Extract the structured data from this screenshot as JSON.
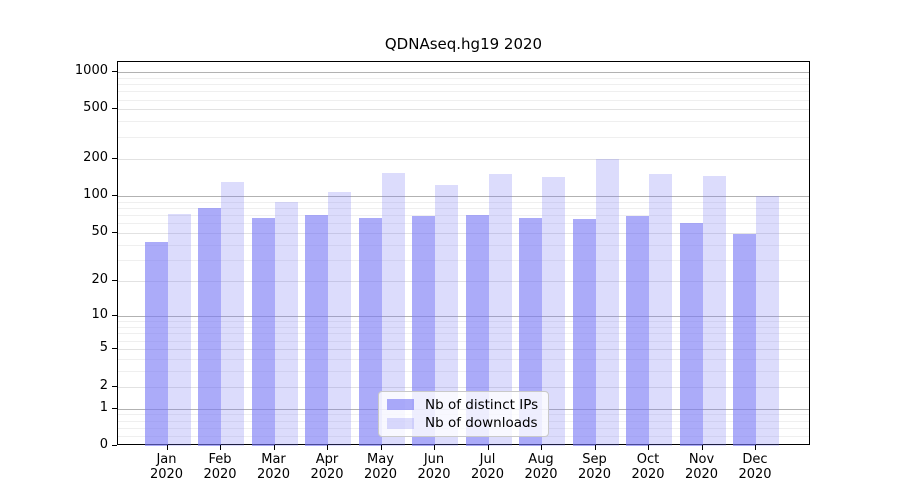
{
  "chart_data": {
    "type": "bar",
    "title": "QDNAseq.hg19 2020",
    "categories": [
      "Jan",
      "Feb",
      "Mar",
      "Apr",
      "May",
      "Jun",
      "Jul",
      "Aug",
      "Sep",
      "Oct",
      "Nov",
      "Dec"
    ],
    "x_tick_second_line": "2020",
    "series": [
      {
        "name": "Nb of distinct IPs",
        "color": "rgba(120,120,245,0.62)",
        "values": [
          42,
          80,
          66,
          70,
          66,
          69,
          70,
          67,
          65,
          69,
          60,
          49
        ]
      },
      {
        "name": "Nb of downloads",
        "color": "rgba(120,120,245,0.26)",
        "values": [
          71,
          129,
          89,
          107,
          155,
          124,
          150,
          142,
          200,
          151,
          145,
          100
        ]
      }
    ],
    "xlabel": "",
    "ylabel": "",
    "y_scale": "log1p",
    "ylim": [
      0,
      1200
    ],
    "y_ticks": [
      0,
      1,
      2,
      5,
      10,
      20,
      50,
      100,
      200,
      500,
      1000
    ],
    "y_minor_ticks": [
      0.2,
      0.4,
      0.6,
      0.8,
      3,
      4,
      6,
      7,
      8,
      9,
      30,
      40,
      60,
      70,
      80,
      90,
      300,
      400,
      600,
      700,
      800,
      900
    ],
    "y_decade_ticks": [
      1,
      10,
      100,
      1000
    ],
    "grid": true,
    "legend_position": "lower center",
    "colors": {
      "bar_base": "#7878f5",
      "grid_decade": "#b2b2b2",
      "grid_minor": "#efefef",
      "axis": "#000000",
      "background": "#ffffff"
    }
  }
}
